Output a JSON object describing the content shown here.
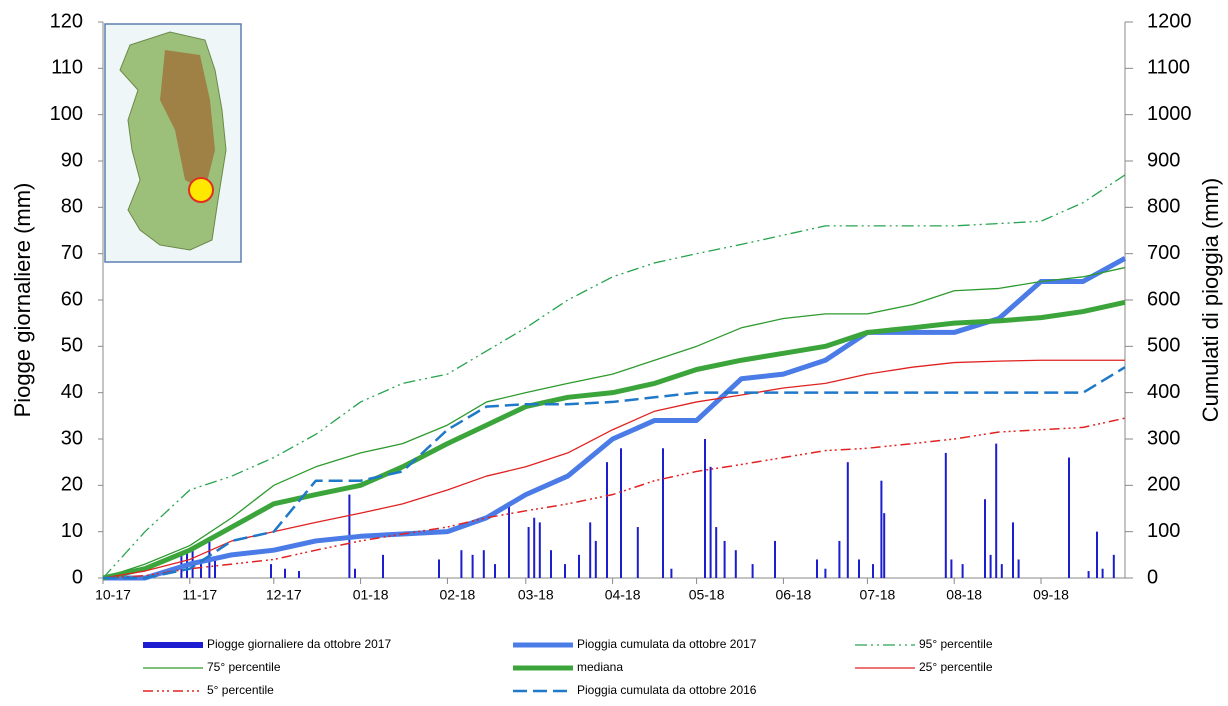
{
  "chart_data": {
    "type": "line",
    "y_label": "Piogge giornaliere (mm)",
    "y2_label": "Cumulati di pioggia (mm)",
    "xlim": [
      0,
      365
    ],
    "xticks": [
      {
        "value": 0,
        "label": "10-17"
      },
      {
        "value": 31,
        "label": "11-17"
      },
      {
        "value": 61,
        "label": "12-17"
      },
      {
        "value": 92,
        "label": "01-18"
      },
      {
        "value": 123,
        "label": "02-18"
      },
      {
        "value": 151,
        "label": "03-18"
      },
      {
        "value": 182,
        "label": "04-18"
      },
      {
        "value": 212,
        "label": "05-18"
      },
      {
        "value": 243,
        "label": "06-18"
      },
      {
        "value": 273,
        "label": "07-18"
      },
      {
        "value": 304,
        "label": "08-18"
      },
      {
        "value": 335,
        "label": "09-18"
      }
    ],
    "ylim": [
      0,
      120
    ],
    "yticks": [
      0,
      10,
      20,
      30,
      40,
      50,
      60,
      70,
      80,
      90,
      100,
      110,
      120
    ],
    "y2lim": [
      0,
      1200
    ],
    "y2ticks": [
      0,
      100,
      200,
      300,
      400,
      500,
      600,
      700,
      800,
      900,
      1000,
      1100,
      1200
    ],
    "x": [
      0,
      15,
      31,
      46,
      61,
      76,
      92,
      107,
      123,
      137,
      151,
      166,
      182,
      197,
      212,
      228,
      243,
      258,
      273,
      289,
      304,
      320,
      335,
      350,
      365
    ],
    "series": [
      {
        "name": "Piogge giornaliere da ottobre 2017",
        "type": "bar",
        "color": "#1c1cd0",
        "width": 2,
        "x": [
          28,
          30,
          32,
          35,
          38,
          40,
          60,
          65,
          70,
          88,
          90,
          100,
          120,
          128,
          132,
          136,
          140,
          145,
          152,
          154,
          156,
          160,
          165,
          170,
          174,
          176,
          180,
          185,
          191,
          200,
          203,
          215,
          217,
          219,
          222,
          226,
          232,
          240,
          255,
          258,
          263,
          266,
          270,
          275,
          278,
          279,
          301,
          303,
          307,
          315,
          317,
          319,
          321,
          325,
          327,
          345,
          352,
          355,
          357,
          361
        ],
        "values": [
          5,
          6,
          6,
          3,
          8,
          4,
          3,
          2,
          1.5,
          18,
          2,
          5,
          4,
          6,
          5,
          6,
          3,
          16,
          11,
          13,
          12,
          6,
          3,
          5,
          12,
          8,
          25,
          28,
          11,
          28,
          2,
          30,
          24,
          11,
          8,
          6,
          3,
          8,
          4,
          2,
          8,
          25,
          4,
          3,
          21,
          14,
          27,
          4,
          3,
          17,
          5,
          29,
          3,
          12,
          4,
          26,
          1.5,
          10,
          2,
          5
        ]
      },
      {
        "name": "Pioggia cumulata da ottobre 2017",
        "axis": "y2",
        "color": "#4a7be6",
        "width": 5,
        "values": [
          0,
          0,
          30,
          50,
          60,
          80,
          90,
          95,
          100,
          130,
          180,
          220,
          300,
          340,
          340,
          430,
          440,
          470,
          530,
          530,
          530,
          560,
          640,
          640,
          690
        ]
      },
      {
        "name": "95° percentile",
        "axis": "y2",
        "color": "#27a34f",
        "width": 1.3,
        "dash": "12 4 2 4 2 4",
        "values": [
          0,
          100,
          190,
          220,
          260,
          310,
          380,
          420,
          440,
          490,
          540,
          600,
          650,
          680,
          700,
          720,
          740,
          760,
          760,
          760,
          760,
          765,
          770,
          810,
          870
        ]
      },
      {
        "name": "75° percentile",
        "axis": "y2",
        "color": "#2e9a2e",
        "width": 1.3,
        "values": [
          0,
          30,
          70,
          130,
          200,
          240,
          270,
          290,
          330,
          380,
          400,
          420,
          440,
          470,
          500,
          540,
          560,
          570,
          570,
          590,
          620,
          625,
          640,
          650,
          670
        ]
      },
      {
        "name": "mediana",
        "axis": "y2",
        "color": "#3ba53b",
        "width": 5,
        "values": [
          0,
          20,
          60,
          110,
          160,
          180,
          200,
          240,
          290,
          330,
          370,
          390,
          400,
          420,
          450,
          470,
          485,
          500,
          530,
          540,
          550,
          555,
          562,
          575,
          595
        ]
      },
      {
        "name": "25° percentile",
        "axis": "y2",
        "color": "#e02222",
        "width": 1.3,
        "values": [
          0,
          15,
          40,
          80,
          100,
          120,
          140,
          160,
          190,
          220,
          240,
          270,
          320,
          360,
          380,
          395,
          410,
          420,
          440,
          455,
          465,
          468,
          470,
          470,
          470
        ]
      },
      {
        "name": "5° percentile",
        "axis": "y2",
        "color": "#e02222",
        "width": 1.5,
        "dash": "10 4 2 3 2 3 2 4",
        "values": [
          0,
          5,
          20,
          30,
          40,
          60,
          80,
          95,
          110,
          130,
          145,
          160,
          180,
          210,
          230,
          245,
          260,
          275,
          280,
          290,
          300,
          315,
          320,
          325,
          345
        ]
      },
      {
        "name": "Pioggia cumulata da ottobre 2016",
        "axis": "y2",
        "color": "#1f78c8",
        "width": 2.5,
        "dash": "14 6",
        "values": [
          0,
          0,
          20,
          80,
          100,
          210,
          210,
          230,
          320,
          370,
          375,
          375,
          380,
          390,
          400,
          400,
          400,
          400,
          400,
          400,
          400,
          400,
          400,
          400,
          455
        ]
      }
    ]
  }
}
